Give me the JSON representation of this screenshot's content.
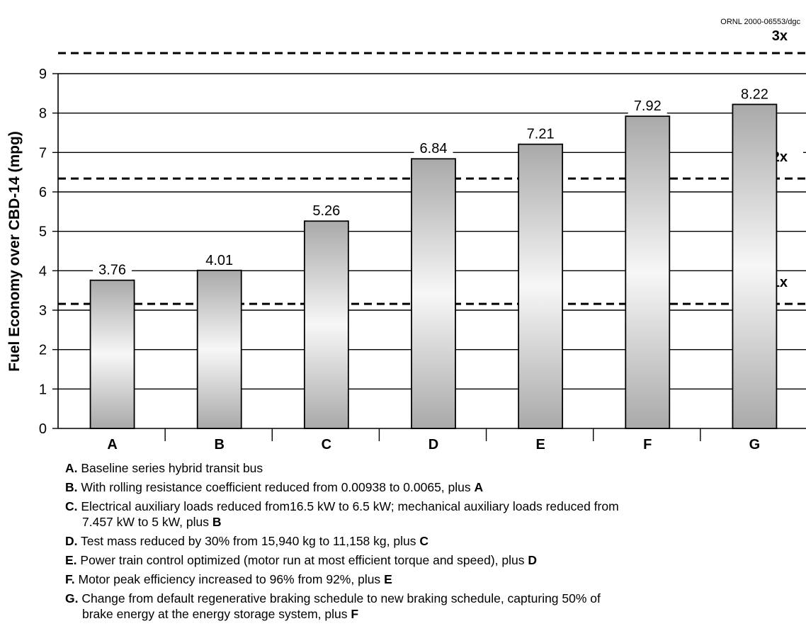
{
  "source_id": "ORNL 2000-06553/dgc",
  "chart_data": {
    "type": "bar",
    "categories": [
      "A",
      "B",
      "C",
      "D",
      "E",
      "F",
      "G"
    ],
    "values": [
      3.76,
      4.01,
      5.26,
      6.84,
      7.21,
      7.92,
      8.22
    ],
    "data_labels": [
      "3.76",
      "4.01",
      "5.26",
      "6.84",
      "7.21",
      "7.92",
      "8.22"
    ],
    "ylabel": "Fuel Economy over CBD-14 (mpg)",
    "xlabel": "",
    "ylim": [
      0,
      9
    ],
    "yticks": [
      "0",
      "1",
      "2",
      "3",
      "4",
      "5",
      "6",
      "7",
      "8",
      "9"
    ],
    "grid": true,
    "reference_lines": [
      {
        "label": "1x",
        "value": 3.16
      },
      {
        "label": "2x",
        "value": 6.34
      },
      {
        "label": "3x",
        "value": 9.52
      }
    ]
  },
  "legend": [
    {
      "letter": "A.",
      "lines": [
        "Baseline series hybrid transit bus"
      ]
    },
    {
      "letter": "B.",
      "lines": [
        "With rolling resistance coefficient reduced from 0.00938 to 0.0065, plus "
      ],
      "suffix": "A"
    },
    {
      "letter": "C.",
      "lines": [
        "Electrical auxiliary loads reduced from16.5 kW to 6.5 kW; mechanical auxiliary loads reduced from",
        "7.457 kW to 5 kW, plus "
      ],
      "suffix": "B"
    },
    {
      "letter": "D.",
      "lines": [
        "Test mass reduced by 30% from 15,940 kg to 11,158 kg, plus "
      ],
      "suffix": "C"
    },
    {
      "letter": "E.",
      "lines": [
        "Power train control optimized (motor run at most efficient torque and speed), plus "
      ],
      "suffix": "D"
    },
    {
      "letter": "F.",
      "lines": [
        "Motor peak efficiency increased to 96% from 92%, plus "
      ],
      "suffix": "E"
    },
    {
      "letter": "G.",
      "lines": [
        "Change from default regenerative braking schedule to new braking schedule, capturing 50% of",
        "brake energy at the energy storage system, plus "
      ],
      "suffix": "F"
    }
  ]
}
